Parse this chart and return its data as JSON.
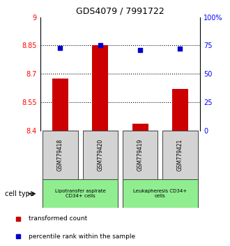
{
  "title": "GDS4079 / 7991722",
  "samples": [
    "GSM779418",
    "GSM779420",
    "GSM779419",
    "GSM779421"
  ],
  "transformed_counts": [
    8.675,
    8.85,
    8.435,
    8.62
  ],
  "percentile_ranks": [
    73.0,
    75.5,
    71.0,
    72.5
  ],
  "ylim_left": [
    8.4,
    9.0
  ],
  "ylim_right": [
    0,
    100
  ],
  "yticks_left": [
    8.4,
    8.55,
    8.7,
    8.85,
    9.0
  ],
  "ytick_labels_left": [
    "8.4",
    "8.55",
    "8.7",
    "8.85",
    "9"
  ],
  "yticks_right": [
    0,
    25,
    50,
    75,
    100
  ],
  "ytick_labels_right": [
    "0",
    "25",
    "50",
    "75",
    "100%"
  ],
  "hlines": [
    8.55,
    8.7,
    8.85
  ],
  "bar_color": "#cc0000",
  "dot_color": "#0000cc",
  "group1_label": "Lipotransfer aspirate\nCD34+ cells",
  "group2_label": "Leukapheresis CD34+\ncells",
  "group1_indices": [
    0,
    1
  ],
  "group2_indices": [
    2,
    3
  ],
  "cell_type_label": "cell type",
  "legend_bar_label": "transformed count",
  "legend_dot_label": "percentile rank within the sample",
  "group1_bg": "#90ee90",
  "group2_bg": "#90ee90",
  "sample_bg": "#d3d3d3"
}
